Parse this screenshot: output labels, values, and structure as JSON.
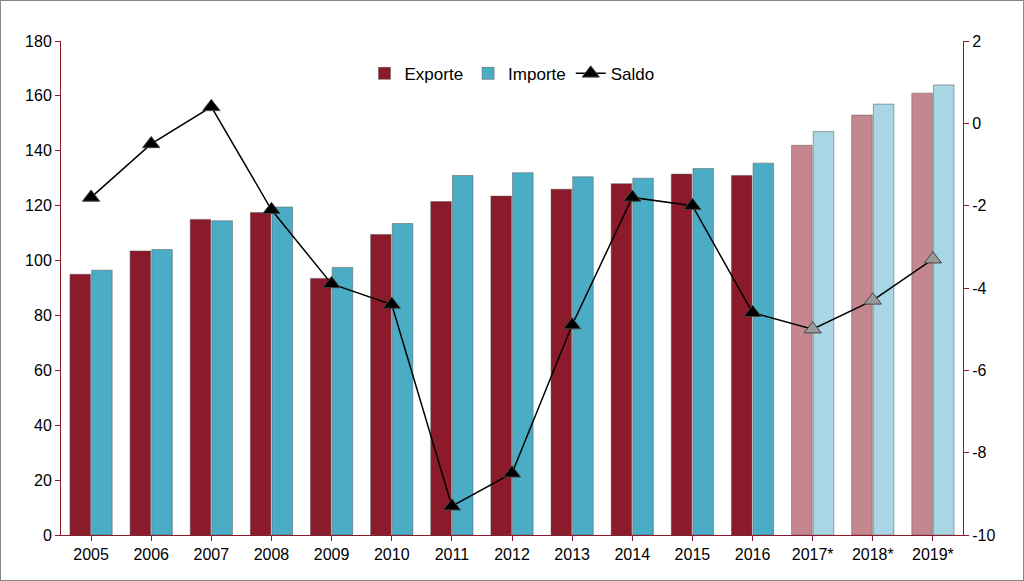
{
  "chart_data": {
    "type": "bar",
    "categories": [
      "2005",
      "2006",
      "2007",
      "2008",
      "2009",
      "2010",
      "2011",
      "2012",
      "2013",
      "2014",
      "2015",
      "2016",
      "2017*",
      "2018*",
      "2019*"
    ],
    "series": [
      {
        "name": "Exporte",
        "type": "bar",
        "color": "#8b1a2b",
        "colors": [
          "#8b1a2b",
          "#8b1a2b",
          "#8b1a2b",
          "#8b1a2b",
          "#8b1a2b",
          "#8b1a2b",
          "#8b1a2b",
          "#8b1a2b",
          "#8b1a2b",
          "#8b1a2b",
          "#8b1a2b",
          "#8b1a2b",
          "#c48790",
          "#c48790",
          "#c48790"
        ],
        "values": [
          95,
          103.5,
          115,
          117.5,
          93.5,
          109.5,
          121.5,
          123.5,
          126,
          128,
          131.5,
          131,
          142,
          153,
          161
        ]
      },
      {
        "name": "Importe",
        "type": "bar",
        "color": "#4bacc6",
        "colors": [
          "#4bacc6",
          "#4bacc6",
          "#4bacc6",
          "#4bacc6",
          "#4bacc6",
          "#4bacc6",
          "#4bacc6",
          "#4bacc6",
          "#4bacc6",
          "#4bacc6",
          "#4bacc6",
          "#4bacc6",
          "#a9d6e4",
          "#a9d6e4",
          "#a9d6e4"
        ],
        "values": [
          96.5,
          104,
          114.5,
          119.5,
          97.5,
          113.5,
          131,
          132,
          130.5,
          130,
          133.5,
          135.5,
          147,
          157,
          164
        ]
      },
      {
        "name": "Saldo",
        "type": "line",
        "axis": "y2",
        "color": "#000000",
        "marker": "triangle-up",
        "line_style": "solid",
        "colors": [
          "#000000",
          "#000000",
          "#000000",
          "#000000",
          "#000000",
          "#000000",
          "#000000",
          "#000000",
          "#000000",
          "#000000",
          "#000000",
          "#000000",
          "#9a9a9a",
          "#9a9a9a",
          "#9a9a9a"
        ],
        "values": [
          -1.8,
          -0.5,
          0.4,
          -2.1,
          -3.9,
          -4.4,
          -9.3,
          -8.5,
          -4.9,
          -1.8,
          -2.0,
          -4.6,
          -5.0,
          -4.3,
          -3.3
        ]
      }
    ],
    "ylim": [
      0,
      180
    ],
    "yticks": [
      0,
      20,
      40,
      60,
      80,
      100,
      120,
      140,
      160,
      180
    ],
    "y2lim": [
      -10,
      2
    ],
    "y2ticks": [
      -10,
      -8,
      -6,
      -4,
      -2,
      0,
      2
    ],
    "grid": false,
    "legend": "top"
  }
}
